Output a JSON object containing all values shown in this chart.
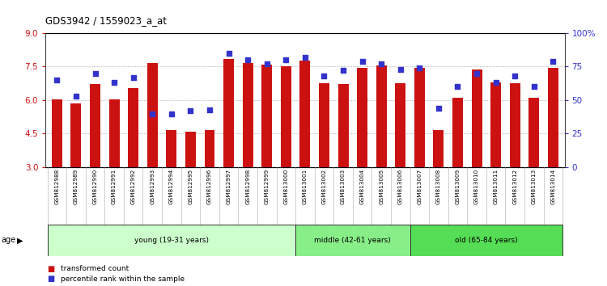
{
  "title": "GDS3942 / 1559023_a_at",
  "samples": [
    "GSM812988",
    "GSM812989",
    "GSM812990",
    "GSM812991",
    "GSM812992",
    "GSM812993",
    "GSM812994",
    "GSM812995",
    "GSM812996",
    "GSM812997",
    "GSM812998",
    "GSM812999",
    "GSM813000",
    "GSM813001",
    "GSM813002",
    "GSM813003",
    "GSM813004",
    "GSM813005",
    "GSM813006",
    "GSM813007",
    "GSM813008",
    "GSM813009",
    "GSM813010",
    "GSM813011",
    "GSM813012",
    "GSM813013",
    "GSM813014"
  ],
  "bar_values": [
    6.05,
    5.85,
    6.7,
    6.05,
    6.55,
    7.65,
    4.65,
    4.6,
    4.65,
    7.85,
    7.65,
    7.6,
    7.5,
    7.75,
    6.75,
    6.7,
    7.45,
    7.55,
    6.75,
    7.45,
    4.65,
    6.1,
    7.35,
    6.8,
    6.75,
    6.1,
    7.45
  ],
  "percentile_values": [
    65,
    53,
    70,
    63,
    67,
    40,
    40,
    42,
    43,
    85,
    80,
    77,
    80,
    82,
    68,
    72,
    79,
    77,
    73,
    74,
    44,
    60,
    70,
    63,
    68,
    60,
    79
  ],
  "bar_color": "#cc1111",
  "percentile_color": "#3333cc",
  "ylim_left": [
    3,
    9
  ],
  "ylim_right": [
    0,
    100
  ],
  "yticks_left": [
    3,
    4.5,
    6,
    7.5,
    9
  ],
  "yticks_right": [
    0,
    25,
    50,
    75,
    100
  ],
  "ytick_labels_right": [
    "0",
    "25",
    "50",
    "75",
    "100%"
  ],
  "groups": [
    {
      "label": "young (19-31 years)",
      "start": 0,
      "end": 13,
      "color": "#ccffcc"
    },
    {
      "label": "middle (42-61 years)",
      "start": 13,
      "end": 19,
      "color": "#88ee88"
    },
    {
      "label": "old (65-84 years)",
      "start": 19,
      "end": 27,
      "color": "#55dd55"
    }
  ]
}
